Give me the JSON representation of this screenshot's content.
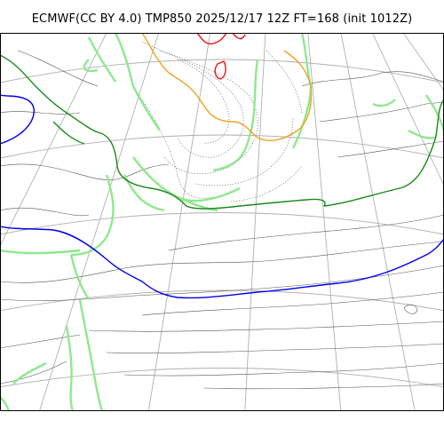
{
  "title": "ECMWF(CC BY 4.0) TMP850 2025/12/17 12Z FT=168 (init 1012Z)",
  "map": {
    "variable": "TMP850",
    "contour_colors": {
      "zero_line": "#0000ee",
      "plus_line": "#1a8a1a",
      "minus_line": "#f0a020",
      "cold_core": "#ee1111",
      "precip_band": "#8fe88f",
      "graticule": "#b0b0b0",
      "coastline": "#555555"
    }
  }
}
